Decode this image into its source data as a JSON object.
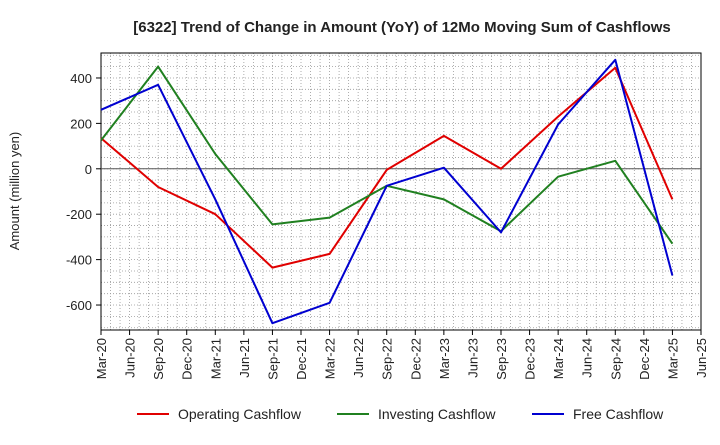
{
  "chart_data": {
    "type": "line",
    "title": "[6322]  Trend of Change in Amount (YoY) of 12Mo Moving Sum of Cashflows",
    "ylabel": "Amount (million yen)",
    "xlabel": "",
    "ylim": [
      -710,
      510
    ],
    "yticks": [
      -600,
      -400,
      -200,
      0,
      200,
      400
    ],
    "grid": true,
    "legend_position": "bottom",
    "x_tick_labels": [
      "Mar-20",
      "Jun-20",
      "Sep-20",
      "Dec-20",
      "Mar-21",
      "Jun-21",
      "Sep-21",
      "Dec-21",
      "Mar-22",
      "Jun-22",
      "Sep-22",
      "Dec-22",
      "Mar-23",
      "Jun-23",
      "Sep-23",
      "Dec-23",
      "Mar-24",
      "Jun-24",
      "Sep-24",
      "Dec-24",
      "Mar-25",
      "Jun-25"
    ],
    "series": [
      {
        "name": "Operating Cashflow",
        "color": "#e00000",
        "x": [
          "Mar-20",
          "Sep-20",
          "Mar-21",
          "Sep-21",
          "Mar-22",
          "Sep-22",
          "Mar-23",
          "Sep-23",
          "Mar-24",
          "Sep-24",
          "Mar-25"
        ],
        "values": [
          135,
          -80,
          -200,
          -435,
          -375,
          -5,
          145,
          0,
          230,
          445,
          -135
        ]
      },
      {
        "name": "Investing Cashflow",
        "color": "#208020",
        "x": [
          "Mar-20",
          "Sep-20",
          "Mar-21",
          "Sep-21",
          "Mar-22",
          "Sep-22",
          "Mar-23",
          "Sep-23",
          "Mar-24",
          "Sep-24",
          "Mar-25"
        ],
        "values": [
          125,
          450,
          65,
          -245,
          -215,
          -75,
          -135,
          -275,
          -35,
          35,
          -330
        ]
      },
      {
        "name": "Free Cashflow",
        "color": "#0000d0",
        "x": [
          "Mar-20",
          "Sep-20",
          "Mar-21",
          "Sep-21",
          "Mar-22",
          "Sep-22",
          "Mar-23",
          "Sep-23",
          "Mar-24",
          "Sep-24",
          "Mar-25"
        ],
        "values": [
          260,
          370,
          -135,
          -680,
          -590,
          -75,
          5,
          -280,
          195,
          480,
          -470
        ]
      }
    ]
  }
}
